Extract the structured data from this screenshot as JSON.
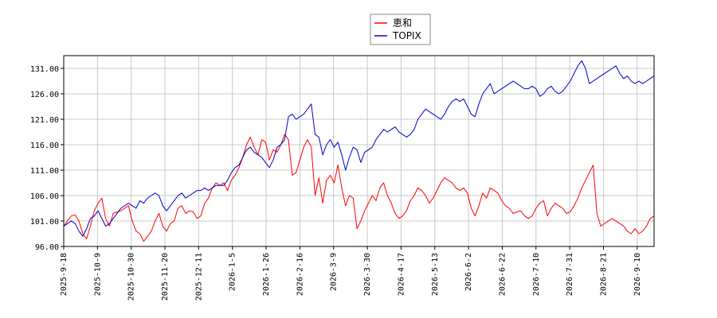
{
  "chart_data": {
    "type": "line",
    "title": "",
    "xlabel": "",
    "ylabel": "",
    "ylim": [
      96.0,
      133.5
    ],
    "grid": true,
    "legend_position": "top-center",
    "y_ticks": [
      "96.00",
      "101.00",
      "106.00",
      "111.00",
      "116.00",
      "121.00",
      "126.00",
      "131.00"
    ],
    "x_ticks": [
      "2025-9-18",
      "2025-10-9",
      "2025-10-30",
      "2025-11-20",
      "2025-12-11",
      "2026-1-5",
      "2026-1-26",
      "2026-2-16",
      "2026-3-9",
      "2026-3-30",
      "2026-4-17",
      "2026-5-13",
      "2026-6-2",
      "2026-6-22",
      "2026-7-10",
      "2026-7-31",
      "2026-8-21",
      "2026-9-10"
    ],
    "series": [
      {
        "name": "恵和",
        "color": "#ff0000",
        "values": [
          100.0,
          101.0,
          102.0,
          102.2,
          101.0,
          98.5,
          97.5,
          100.0,
          103.0,
          104.5,
          105.5,
          101.5,
          100.0,
          102.5,
          102.8,
          103.0,
          103.5,
          104.0,
          101.0,
          99.0,
          98.5,
          97.0,
          98.0,
          99.0,
          101.0,
          102.5,
          100.0,
          99.0,
          100.5,
          101.0,
          103.5,
          104.0,
          102.5,
          103.0,
          102.8,
          101.5,
          102.0,
          104.5,
          105.5,
          107.5,
          108.5,
          108.0,
          108.5,
          107.0,
          109.0,
          110.0,
          111.5,
          113.5,
          116.0,
          117.5,
          115.5,
          114.0,
          117.0,
          116.5,
          113.0,
          115.0,
          114.5,
          116.0,
          118.0,
          117.0,
          110.0,
          110.5,
          113.0,
          115.5,
          117.0,
          115.5,
          106.0,
          109.5,
          104.5,
          109.0,
          110.0,
          108.5,
          112.0,
          107.5,
          104.0,
          106.0,
          105.5,
          99.5,
          101.0,
          103.0,
          104.5,
          106.0,
          105.0,
          107.5,
          108.5,
          106.0,
          104.5,
          102.5,
          101.5,
          102.0,
          103.0,
          105.0,
          106.0,
          107.5,
          107.0,
          106.0,
          104.5,
          105.5,
          107.0,
          108.5,
          109.5,
          109.0,
          108.5,
          107.5,
          107.0,
          107.5,
          106.5,
          103.5,
          102.0,
          104.0,
          106.5,
          105.5,
          107.5,
          107.0,
          106.5,
          105.0,
          104.0,
          103.5,
          102.5,
          102.8,
          103.0,
          102.0,
          101.5,
          102.0,
          103.5,
          104.5,
          105.0,
          102.0,
          103.5,
          104.5,
          104.0,
          103.5,
          102.5,
          102.8,
          104.0,
          105.5,
          107.5,
          109.0,
          110.5,
          112.0,
          102.5,
          100.0,
          100.5,
          101.0,
          101.5,
          101.0,
          100.5,
          100.0,
          99.0,
          98.5,
          99.5,
          98.5,
          99.0,
          100.0,
          101.5,
          102.0
        ]
      },
      {
        "name": "TOPIX",
        "color": "#0000cc",
        "values": [
          100.0,
          100.5,
          101.0,
          100.5,
          99.0,
          98.0,
          99.5,
          101.5,
          102.0,
          103.0,
          101.5,
          100.0,
          100.5,
          101.5,
          102.5,
          103.5,
          104.0,
          104.5,
          104.0,
          103.5,
          105.0,
          104.5,
          105.5,
          106.0,
          106.5,
          106.0,
          104.0,
          103.0,
          104.0,
          105.0,
          106.0,
          106.5,
          105.5,
          106.0,
          106.5,
          107.0,
          107.0,
          107.5,
          107.0,
          107.5,
          108.0,
          108.0,
          108.0,
          109.0,
          110.5,
          111.5,
          112.0,
          113.5,
          115.0,
          115.5,
          114.5,
          114.0,
          113.5,
          112.5,
          111.5,
          113.0,
          115.5,
          116.0,
          117.0,
          121.5,
          122.0,
          121.0,
          121.5,
          122.0,
          123.0,
          124.0,
          118.0,
          117.5,
          114.0,
          116.0,
          117.0,
          115.5,
          116.5,
          114.0,
          111.0,
          113.5,
          115.5,
          115.0,
          112.5,
          114.5,
          115.0,
          115.5,
          117.0,
          118.0,
          119.0,
          118.5,
          119.0,
          119.5,
          118.5,
          118.0,
          117.5,
          118.0,
          119.0,
          121.0,
          122.0,
          123.0,
          122.5,
          122.0,
          121.5,
          121.0,
          122.0,
          123.5,
          124.5,
          125.0,
          124.5,
          125.0,
          123.5,
          122.0,
          121.5,
          124.0,
          126.0,
          127.0,
          128.0,
          126.0,
          126.5,
          127.0,
          127.5,
          128.0,
          128.5,
          128.0,
          127.5,
          127.0,
          127.0,
          127.5,
          127.0,
          125.5,
          126.0,
          127.0,
          127.5,
          126.5,
          126.0,
          126.5,
          127.5,
          128.5,
          130.0,
          131.5,
          132.5,
          131.0,
          128.0,
          128.5,
          129.0,
          129.5,
          130.0,
          130.5,
          131.0,
          131.5,
          130.0,
          129.0,
          129.5,
          128.5,
          128.0,
          128.5,
          128.0,
          128.5,
          129.0,
          129.5
        ]
      }
    ]
  }
}
